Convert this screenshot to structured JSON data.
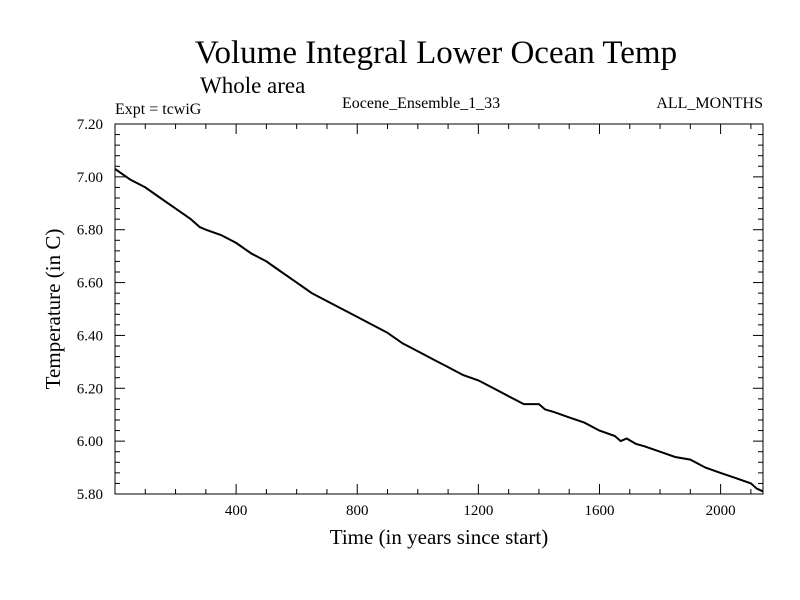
{
  "chart_data": {
    "type": "line",
    "title": "Volume Integral Lower Ocean Temp",
    "subtitle": "Whole area",
    "header_left": "Expt = tcwiG",
    "header_center": "Eocene_Ensemble_1_33",
    "header_right": "ALL_MONTHS",
    "xlabel": "Time (in years since start)",
    "ylabel": "Temperature (in C)",
    "xlim": [
      0,
      2140
    ],
    "ylim": [
      5.8,
      7.2
    ],
    "x_ticks": [
      400,
      800,
      1200,
      1600,
      2000
    ],
    "x_tick_labels": [
      "400",
      "800",
      "1200",
      "1600",
      "2000"
    ],
    "y_ticks": [
      5.8,
      6.0,
      6.2,
      6.4,
      6.6,
      6.8,
      7.0,
      7.2
    ],
    "y_tick_labels": [
      "5.80",
      "6.00",
      "6.20",
      "6.40",
      "6.60",
      "6.80",
      "7.00",
      "7.20"
    ],
    "grid": false,
    "series": [
      {
        "color": "#000000",
        "x": [
          0,
          50,
          100,
          150,
          200,
          250,
          280,
          300,
          350,
          400,
          450,
          500,
          550,
          600,
          650,
          700,
          750,
          800,
          850,
          900,
          950,
          1000,
          1050,
          1100,
          1150,
          1200,
          1250,
          1300,
          1350,
          1400,
          1420,
          1450,
          1500,
          1550,
          1600,
          1650,
          1670,
          1690,
          1720,
          1750,
          1800,
          1850,
          1900,
          1950,
          2000,
          2050,
          2100,
          2120,
          2140
        ],
        "y": [
          7.03,
          6.99,
          6.96,
          6.92,
          6.88,
          6.84,
          6.81,
          6.8,
          6.78,
          6.75,
          6.71,
          6.68,
          6.64,
          6.6,
          6.56,
          6.53,
          6.5,
          6.47,
          6.44,
          6.41,
          6.37,
          6.34,
          6.31,
          6.28,
          6.25,
          6.23,
          6.2,
          6.17,
          6.14,
          6.14,
          6.12,
          6.11,
          6.09,
          6.07,
          6.04,
          6.02,
          6.0,
          6.01,
          5.99,
          5.98,
          5.96,
          5.94,
          5.93,
          5.9,
          5.88,
          5.86,
          5.84,
          5.82,
          5.81
        ]
      }
    ]
  }
}
